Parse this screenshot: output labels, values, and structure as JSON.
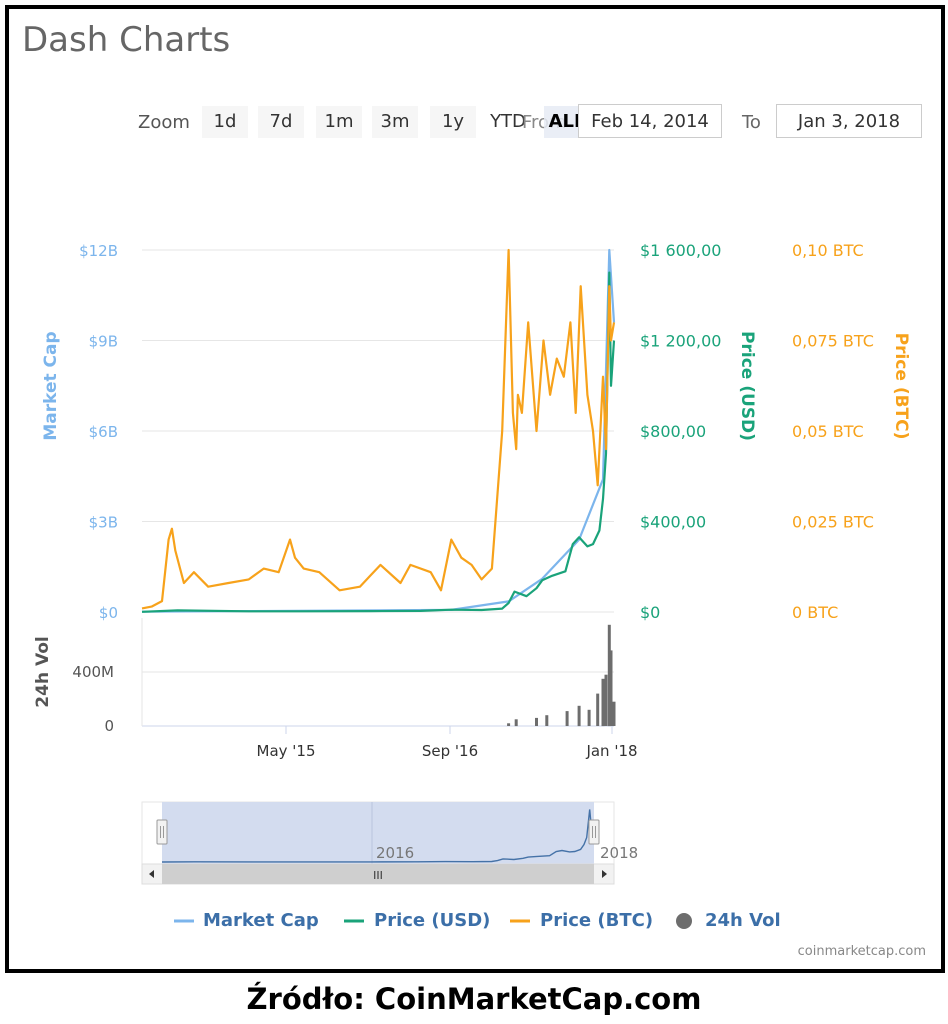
{
  "title": "Dash Charts",
  "zoom": {
    "label": "Zoom",
    "buttons": [
      "1d",
      "7d",
      "1m",
      "3m",
      "1y",
      "YTD",
      "ALL"
    ],
    "active": "ALL",
    "from_label": "From",
    "from_value": "Feb 14, 2014",
    "to_label": "To",
    "to_value": "Jan 3, 2018"
  },
  "legend": {
    "market_cap": "Market Cap",
    "price_usd": "Price (USD)",
    "price_btc": "Price (BTC)",
    "volume": "24h Vol"
  },
  "credit": "coinmarketcap.com",
  "source_caption": "Źródło: CoinMarketCap.com",
  "colors": {
    "market_cap": "#7cb5ec",
    "price_usd": "#1aa37a",
    "price_btc": "#f7a21b",
    "volume": "#6d6d6d",
    "grid": "#e6e6e6",
    "navigator_fill": "#d3dcef",
    "navigator_line": "#4572a7"
  },
  "chart_data": {
    "type": "line",
    "title": "Dash Charts",
    "x_ticks": [
      "May '15",
      "Sep '16",
      "Jan '18"
    ],
    "navigator_ticks": [
      "2016",
      "2018"
    ],
    "x_range": [
      "2014-02-14",
      "2018-01-03"
    ],
    "axes": {
      "market_cap": {
        "label": "Market Cap",
        "ticks": [
          "$0",
          "$3B",
          "$6B",
          "$9B",
          "$12B"
        ],
        "range": [
          0,
          12000000000
        ]
      },
      "price_usd": {
        "label": "Price (USD)",
        "ticks": [
          "$0",
          "$400,00",
          "$800,00",
          "$1 200,00",
          "$1 600,00"
        ],
        "range": [
          0,
          1600
        ]
      },
      "price_btc": {
        "label": "Price (BTC)",
        "ticks": [
          "0 BTC",
          "0,025 BTC",
          "0,05 BTC",
          "0,075 BTC",
          "0,10 BTC"
        ],
        "range": [
          0,
          0.1
        ]
      },
      "volume": {
        "label": "24h Vol",
        "ticks": [
          "0",
          "400M"
        ],
        "range": [
          0,
          800000000
        ]
      }
    },
    "series": [
      {
        "name": "Price (BTC)",
        "x": [
          "2014-02-14",
          "2014-03-15",
          "2014-04-15",
          "2014-05-05",
          "2014-05-15",
          "2014-05-25",
          "2014-06-20",
          "2014-07-20",
          "2014-09-01",
          "2014-11-01",
          "2015-01-01",
          "2015-02-15",
          "2015-04-01",
          "2015-05-05",
          "2015-05-20",
          "2015-06-15",
          "2015-08-01",
          "2015-10-01",
          "2015-12-01",
          "2016-01-01",
          "2016-02-01",
          "2016-04-01",
          "2016-05-01",
          "2016-07-01",
          "2016-08-01",
          "2016-09-01",
          "2016-10-01",
          "2016-11-01",
          "2016-12-01",
          "2017-01-01",
          "2017-02-01",
          "2017-02-20",
          "2017-03-05",
          "2017-03-15",
          "2017-03-20",
          "2017-04-01",
          "2017-04-20",
          "2017-05-15",
          "2017-06-05",
          "2017-06-25",
          "2017-07-15",
          "2017-08-05",
          "2017-08-25",
          "2017-09-10",
          "2017-09-25",
          "2017-10-15",
          "2017-11-01",
          "2017-11-15",
          "2017-12-01",
          "2017-12-10",
          "2017-12-20",
          "2017-12-25",
          "2018-01-03"
        ],
        "values": [
          0.001,
          0.0015,
          0.003,
          0.02,
          0.023,
          0.017,
          0.008,
          0.011,
          0.007,
          0.008,
          0.009,
          0.012,
          0.011,
          0.02,
          0.015,
          0.012,
          0.011,
          0.006,
          0.007,
          0.01,
          0.013,
          0.008,
          0.013,
          0.011,
          0.006,
          0.02,
          0.015,
          0.013,
          0.009,
          0.012,
          0.05,
          0.1,
          0.055,
          0.045,
          0.06,
          0.055,
          0.08,
          0.05,
          0.075,
          0.06,
          0.07,
          0.065,
          0.08,
          0.055,
          0.09,
          0.06,
          0.05,
          0.035,
          0.065,
          0.045,
          0.09,
          0.075,
          0.08
        ]
      },
      {
        "name": "Price (USD)",
        "x": [
          "2014-02-14",
          "2014-06-01",
          "2015-01-01",
          "2015-06-01",
          "2016-01-01",
          "2016-06-01",
          "2016-09-01",
          "2016-12-01",
          "2017-02-01",
          "2017-02-20",
          "2017-03-10",
          "2017-04-15",
          "2017-05-15",
          "2017-06-01",
          "2017-07-01",
          "2017-08-10",
          "2017-09-01",
          "2017-09-20",
          "2017-10-15",
          "2017-11-01",
          "2017-11-20",
          "2017-12-01",
          "2017-12-10",
          "2017-12-20",
          "2017-12-25",
          "2018-01-03"
        ],
        "values": [
          1,
          7,
          3,
          3,
          4,
          5,
          10,
          9,
          15,
          40,
          90,
          70,
          105,
          140,
          160,
          180,
          300,
          330,
          290,
          300,
          360,
          500,
          700,
          1500,
          1000,
          1200
        ]
      },
      {
        "name": "Market Cap",
        "x": [
          "2014-02-14",
          "2016-09-01",
          "2017-02-20",
          "2017-06-01",
          "2017-09-20",
          "2017-12-01",
          "2017-12-20",
          "2018-01-03"
        ],
        "values": [
          10000000,
          70000000,
          350000000,
          1100000000,
          2400000000,
          4400000000,
          12000000000,
          9600000000
        ]
      },
      {
        "name": "24h Vol",
        "x": [
          "2017-02-20",
          "2017-03-15",
          "2017-05-15",
          "2017-06-15",
          "2017-08-15",
          "2017-09-20",
          "2017-10-20",
          "2017-11-15",
          "2017-12-01",
          "2017-12-10",
          "2017-12-20",
          "2017-12-25",
          "2018-01-03"
        ],
        "values": [
          20000000,
          50000000,
          60000000,
          80000000,
          110000000,
          150000000,
          120000000,
          240000000,
          350000000,
          380000000,
          750000000,
          560000000,
          180000000
        ]
      }
    ]
  }
}
